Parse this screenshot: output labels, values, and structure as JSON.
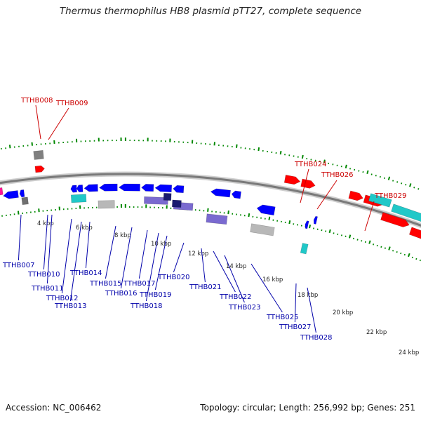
{
  "title": "Thermus thermophilus HB8 plasmid pTT27, complete sequence",
  "footer": {
    "accession": "Accession: NC_006462",
    "summary": "Topology: circular; Length: 256,992 bp; Genes: 251"
  },
  "colors": {
    "forward_label": "#cc0000",
    "reverse_label": "#0000aa",
    "forward_gene": "#ff0000",
    "reverse_gene": "#0000ff",
    "backbone": "#7a7a7a",
    "tick": "#008800",
    "cyan_gene": "#20c8c8",
    "gray_gene": "#b8b8b8",
    "purple_gene": "#7a6ad0",
    "navy_gene": "#1a1a70",
    "magenta_gene": "#ff1493"
  },
  "scale_labels": [
    "4 kbp",
    "6 kbp",
    "8 kbp",
    "10 kbp",
    "12 kbp",
    "14 kbp",
    "16 kbp",
    "18 kbp",
    "20 kbp",
    "22 kbp",
    "24 kbp"
  ],
  "gene_labels_top": [
    "TTHB008",
    "TTHB009",
    "TTHB024",
    "TTHB026",
    "TTHB029"
  ],
  "gene_labels_bottom": [
    "TTHB007",
    "TTHB010",
    "TTHB011",
    "TTHB012",
    "TTHB013",
    "TTHB014",
    "TTHB015",
    "TTHB016",
    "TTHB017",
    "TTHB018",
    "TTHB019",
    "TTHB020",
    "TTHB021",
    "TTHB022",
    "TTHB023",
    "TTHB025",
    "TTHB027",
    "TTHB028"
  ]
}
